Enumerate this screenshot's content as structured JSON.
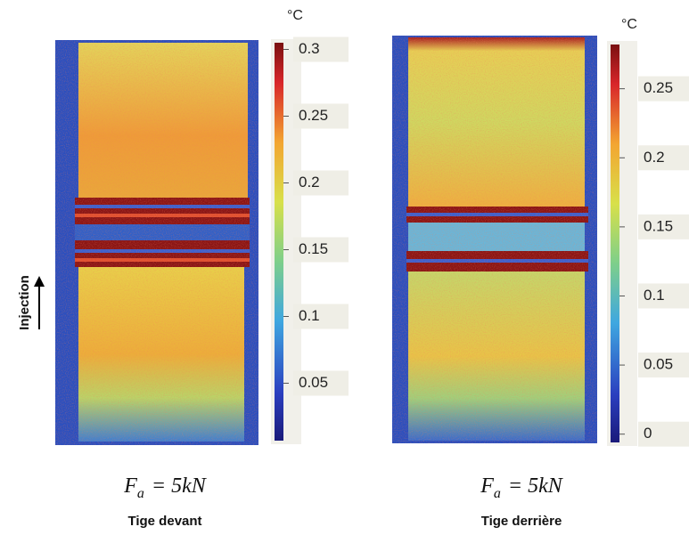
{
  "panels": [
    {
      "colorbar": {
        "unit": "°C",
        "lim": [
          0.007,
          0.305
        ],
        "ticks": [
          0.3,
          0.25,
          0.2,
          0.15,
          0.1,
          0.05
        ]
      },
      "formula": {
        "symbol": "F",
        "subscript": "a",
        "text": "= 5kN"
      },
      "caption": "Tige devant"
    },
    {
      "colorbar": {
        "unit": "°C",
        "lim": [
          -0.006,
          0.282
        ],
        "ticks": [
          0.25,
          0.2,
          0.15,
          0.1,
          0.05,
          0
        ]
      },
      "formula": {
        "symbol": "F",
        "subscript": "a",
        "text": "= 5kN"
      },
      "caption": "Tige derrière"
    }
  ],
  "side_label": "Injection"
}
